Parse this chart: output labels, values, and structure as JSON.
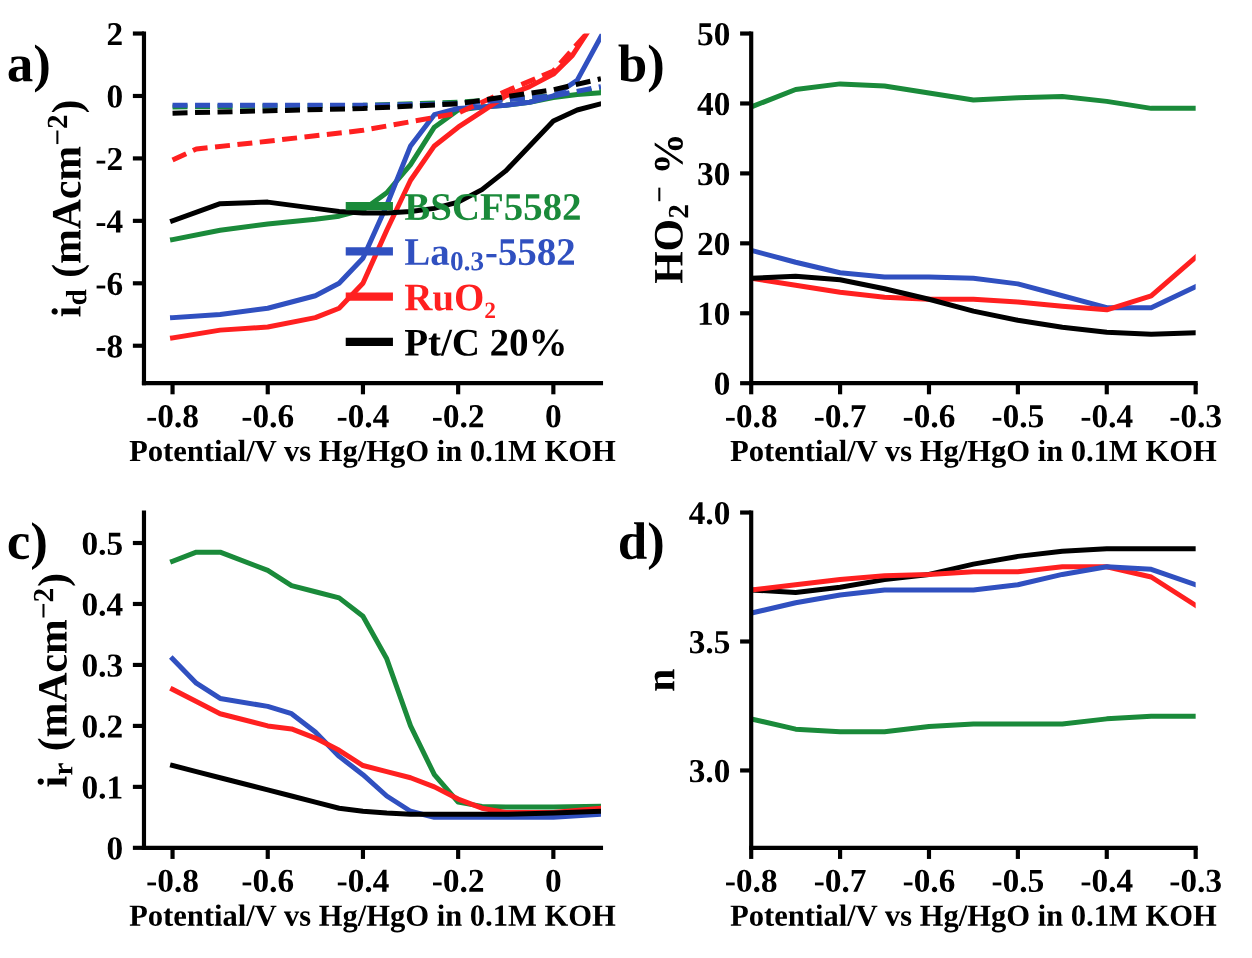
{
  "chart_data": [
    {
      "type": "line",
      "annotations": [
        "a)"
      ],
      "xlabel": "Potential/V vs Hg/HgO in 0.1M KOH",
      "ylabel": "i$_{d}$ (mAcm$^{−2}$)",
      "xlim": [
        -0.86,
        0.1
      ],
      "ylim": [
        -9.2,
        2
      ],
      "xticks": [
        -0.8,
        -0.6,
        -0.4,
        -0.2,
        0
      ],
      "yticks": [
        -8,
        -6,
        -4,
        -2,
        0,
        2
      ],
      "grid": false,
      "legend": "bottom right",
      "line_style": "solid",
      "series": [
        {
          "name": "BSCF5582",
          "color": "#1a8a3a",
          "x": [
            -0.8,
            -0.7,
            -0.6,
            -0.5,
            -0.45,
            -0.4,
            -0.35,
            -0.3,
            -0.25,
            -0.2,
            -0.15,
            -0.1,
            -0.05,
            0,
            0.05,
            0.1
          ],
          "values": [
            -4.6,
            -4.3,
            -4.1,
            -3.95,
            -3.85,
            -3.65,
            -3.1,
            -2.2,
            -1.0,
            -0.45,
            -0.35,
            -0.3,
            -0.2,
            -0.05,
            0.05,
            0.1
          ]
        },
        {
          "name": "La$_{0.3}$-5582",
          "color": "#3050c0",
          "x": [
            -0.8,
            -0.7,
            -0.6,
            -0.5,
            -0.45,
            -0.4,
            -0.35,
            -0.3,
            -0.25,
            -0.2,
            -0.15,
            -0.1,
            -0.05,
            0,
            0.05,
            0.1
          ],
          "values": [
            -7.1,
            -7.0,
            -6.8,
            -6.4,
            -6.0,
            -5.2,
            -3.5,
            -1.6,
            -0.6,
            -0.4,
            -0.35,
            -0.3,
            -0.2,
            0.0,
            0.5,
            1.9
          ]
        },
        {
          "name": "RuO₂",
          "color": "#ff2020",
          "x": [
            -0.8,
            -0.7,
            -0.6,
            -0.5,
            -0.45,
            -0.4,
            -0.35,
            -0.3,
            -0.25,
            -0.2,
            -0.15,
            -0.1,
            -0.05,
            0,
            0.04,
            0.07
          ],
          "values": [
            -7.75,
            -7.5,
            -7.4,
            -7.1,
            -6.8,
            -6.0,
            -4.3,
            -2.7,
            -1.6,
            -1.0,
            -0.5,
            0.0,
            0.3,
            0.7,
            1.3,
            2.0
          ]
        },
        {
          "name": "Pt/C 20%",
          "color": "#000000",
          "x": [
            -0.8,
            -0.7,
            -0.6,
            -0.5,
            -0.45,
            -0.4,
            -0.35,
            -0.3,
            -0.25,
            -0.2,
            -0.15,
            -0.1,
            -0.05,
            0,
            0.05,
            0.1
          ],
          "values": [
            -4.0,
            -3.45,
            -3.4,
            -3.6,
            -3.7,
            -3.75,
            -3.75,
            -3.7,
            -3.6,
            -3.4,
            -3.0,
            -2.4,
            -1.6,
            -0.8,
            -0.45,
            -0.25
          ]
        },
        {
          "color": "#1a8a3a",
          "line_style": "dashed",
          "x": [
            -0.8,
            -0.4,
            -0.2,
            0,
            0.1
          ],
          "values": [
            -0.35,
            -0.3,
            -0.2,
            0.0,
            0.2
          ]
        },
        {
          "color": "#3050c0",
          "line_style": "dashed",
          "x": [
            -0.8,
            -0.4,
            -0.2,
            0,
            0.1
          ],
          "values": [
            -0.3,
            -0.3,
            -0.25,
            0.0,
            0.3
          ]
        },
        {
          "color": "#ff2020",
          "line_style": "dashed",
          "x": [
            -0.8,
            -0.75,
            -0.6,
            -0.4,
            -0.2,
            -0.1,
            0,
            0.07
          ],
          "values": [
            -2.05,
            -1.7,
            -1.45,
            -1.1,
            -0.55,
            0.15,
            0.8,
            2.0
          ]
        },
        {
          "color": "#000000",
          "line_style": "dashed",
          "x": [
            -0.8,
            -0.4,
            -0.2,
            0,
            0.1
          ],
          "values": [
            -0.55,
            -0.4,
            -0.25,
            0.2,
            0.55
          ]
        }
      ]
    },
    {
      "type": "line",
      "annotations": [
        "b)"
      ],
      "xlabel": "Potential/V vs Hg/HgO in 0.1M KOH",
      "ylabel": "HO$_{2}$$^{−}$ %",
      "xlim": [
        -0.8,
        -0.3
      ],
      "ylim": [
        0,
        50
      ],
      "xticks": [
        -0.8,
        -0.7,
        -0.6,
        -0.5,
        -0.4,
        -0.3
      ],
      "yticks": [
        0,
        10,
        20,
        30,
        40,
        50
      ],
      "grid": false,
      "line_style": "solid",
      "x": [
        -0.8,
        -0.75,
        -0.7,
        -0.65,
        -0.6,
        -0.55,
        -0.5,
        -0.45,
        -0.4,
        -0.35,
        -0.3
      ],
      "series": [
        {
          "color": "#1a8a3a",
          "values": [
            39.5,
            42,
            42.8,
            42.5,
            41.5,
            40.5,
            40.8,
            41,
            40.3,
            39.3,
            39.3
          ]
        },
        {
          "color": "#3050c0",
          "values": [
            19,
            17.3,
            15.8,
            15.2,
            15.2,
            15,
            14.2,
            12.5,
            10.8,
            10.8,
            13.8
          ]
        },
        {
          "color": "#ff2020",
          "values": [
            15,
            14,
            13,
            12.3,
            12,
            12,
            11.6,
            11,
            10.5,
            12.5,
            18
          ]
        },
        {
          "color": "#000000",
          "values": [
            15,
            15.3,
            14.8,
            13.5,
            12,
            10.3,
            9,
            8,
            7.3,
            7,
            7.2
          ]
        }
      ]
    },
    {
      "type": "line",
      "annotations": [
        "c)"
      ],
      "xlabel": "Potential/V vs Hg/HgO in 0.1M KOH",
      "ylabel": "i$_{r}$ (mAcm$^{−2}$)",
      "xlim": [
        -0.86,
        0.1
      ],
      "ylim": [
        0,
        0.55
      ],
      "xticks": [
        -0.8,
        -0.6,
        -0.4,
        -0.2,
        0
      ],
      "yticks": [
        0,
        0.1,
        0.2,
        0.3,
        0.4,
        0.5
      ],
      "grid": false,
      "line_style": "solid",
      "x": [
        -0.8,
        -0.75,
        -0.7,
        -0.6,
        -0.55,
        -0.5,
        -0.45,
        -0.4,
        -0.35,
        -0.3,
        -0.25,
        -0.2,
        -0.15,
        -0.1,
        0,
        0.1
      ],
      "series": [
        {
          "color": "#1a8a3a",
          "values": [
            0.47,
            0.485,
            0.485,
            0.455,
            0.43,
            0.42,
            0.41,
            0.38,
            0.31,
            0.2,
            0.12,
            0.075,
            0.068,
            0.067,
            0.067,
            0.068
          ]
        },
        {
          "color": "#3050c0",
          "values": [
            0.31,
            0.27,
            0.245,
            0.232,
            0.22,
            0.19,
            0.15,
            0.12,
            0.085,
            0.06,
            0.05,
            0.05,
            0.05,
            0.05,
            0.05,
            0.055
          ]
        },
        {
          "color": "#ff2020",
          "values": [
            0.26,
            0.24,
            0.22,
            0.2,
            0.195,
            0.18,
            0.16,
            0.135,
            0.125,
            0.115,
            0.1,
            0.08,
            0.065,
            0.058,
            0.058,
            0.065
          ]
        },
        {
          "color": "#000000",
          "values": [
            0.135,
            0.125,
            0.115,
            0.095,
            0.085,
            0.075,
            0.065,
            0.06,
            0.057,
            0.055,
            0.055,
            0.055,
            0.055,
            0.055,
            0.057,
            0.06
          ]
        }
      ]
    },
    {
      "type": "line",
      "annotations": [
        "d)"
      ],
      "xlabel": "Potential/V vs Hg/HgO in 0.1M KOH",
      "ylabel": "n",
      "xlim": [
        -0.8,
        -0.3
      ],
      "ylim": [
        2.7,
        4.0
      ],
      "xticks": [
        -0.8,
        -0.7,
        -0.6,
        -0.5,
        -0.4,
        -0.3
      ],
      "yticks": [
        {
          "value": 3,
          "label": "3.0"
        },
        3.5,
        {
          "value": 4,
          "label": "4.0"
        }
      ],
      "grid": false,
      "line_style": "solid",
      "x": [
        -0.8,
        -0.75,
        -0.7,
        -0.65,
        -0.6,
        -0.55,
        -0.5,
        -0.45,
        -0.4,
        -0.35,
        -0.3
      ],
      "series": [
        {
          "color": "#000000",
          "values": [
            3.7,
            3.69,
            3.71,
            3.74,
            3.76,
            3.8,
            3.83,
            3.85,
            3.86,
            3.86,
            3.86
          ]
        },
        {
          "color": "#ff2020",
          "values": [
            3.7,
            3.72,
            3.74,
            3.755,
            3.76,
            3.77,
            3.77,
            3.79,
            3.79,
            3.75,
            3.64
          ]
        },
        {
          "color": "#3050c0",
          "values": [
            3.61,
            3.65,
            3.68,
            3.7,
            3.7,
            3.7,
            3.72,
            3.76,
            3.79,
            3.78,
            3.72
          ]
        },
        {
          "color": "#1a8a3a",
          "values": [
            3.2,
            3.16,
            3.15,
            3.15,
            3.17,
            3.18,
            3.18,
            3.18,
            3.2,
            3.21,
            3.21
          ]
        }
      ]
    }
  ]
}
